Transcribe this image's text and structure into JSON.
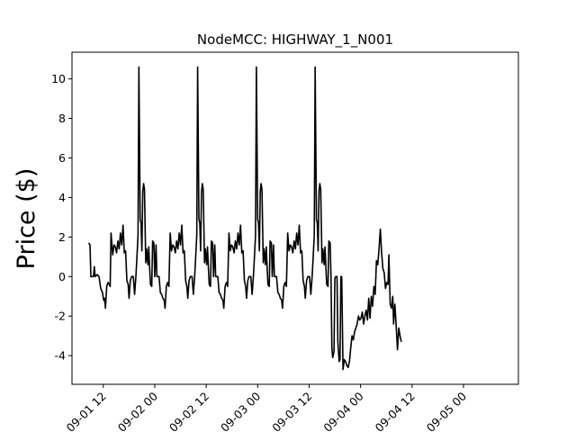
{
  "chart_data": {
    "type": "line",
    "title": "NodeMCC: HIGHWAY_1_N001",
    "xlabel": "",
    "ylabel": "Price ($)",
    "x_unit": "hours from 2020-09-01 00:00",
    "xlim": [
      4.7,
      108.8
    ],
    "ylim": [
      -5.45,
      11.35
    ],
    "yticks": [
      -4,
      -2,
      0,
      2,
      4,
      6,
      8,
      10
    ],
    "xticks": [
      {
        "x": 12,
        "label": "09-01 12"
      },
      {
        "x": 24,
        "label": "09-02 00"
      },
      {
        "x": 36,
        "label": "09-02 12"
      },
      {
        "x": 48,
        "label": "09-03 00"
      },
      {
        "x": 60,
        "label": "09-03 12"
      },
      {
        "x": 72,
        "label": "09-04 00"
      },
      {
        "x": 84,
        "label": "09-04 12"
      },
      {
        "x": 96,
        "label": "09-05 00"
      }
    ],
    "grid": false,
    "line_color": "#000000",
    "series": [
      {
        "name": "",
        "points": [
          [
            8.6,
            1.7
          ],
          [
            8.9,
            1.6
          ],
          [
            9.1,
            0.0
          ],
          [
            9.7,
            0.0
          ],
          [
            9.9,
            0.5
          ],
          [
            10.1,
            0.0
          ],
          [
            10.6,
            0.1
          ],
          [
            11.0,
            0.0
          ],
          [
            11.4,
            -0.6
          ],
          [
            11.8,
            -0.8
          ],
          [
            12.1,
            -1.2
          ],
          [
            12.3,
            -1.1
          ],
          [
            12.5,
            -1.6
          ],
          [
            12.8,
            -0.5
          ],
          [
            13.1,
            -0.3
          ],
          [
            13.4,
            -0.4
          ],
          [
            13.6,
            -0.5
          ],
          [
            13.8,
            2.2
          ],
          [
            14.2,
            1.1
          ],
          [
            14.5,
            1.6
          ],
          [
            14.8,
            1.5
          ],
          [
            15.1,
            1.2
          ],
          [
            15.4,
            1.8
          ],
          [
            15.7,
            1.4
          ],
          [
            16.0,
            2.2
          ],
          [
            16.3,
            1.6
          ],
          [
            16.6,
            2.6
          ],
          [
            16.9,
            1.2
          ],
          [
            17.2,
            1.3
          ],
          [
            17.5,
            -0.2
          ],
          [
            17.8,
            -0.4
          ],
          [
            18.0,
            -1.1
          ],
          [
            18.3,
            -0.2
          ],
          [
            18.6,
            0.0
          ],
          [
            19.0,
            0.0
          ],
          [
            19.3,
            -0.9
          ],
          [
            19.6,
            0.0
          ],
          [
            19.8,
            0.8
          ],
          [
            20.1,
            2.1
          ],
          [
            20.3,
            10.6
          ],
          [
            20.6,
            2.9
          ],
          [
            20.8,
            2.7
          ],
          [
            21.0,
            1.3
          ],
          [
            21.2,
            4.3
          ],
          [
            21.4,
            4.7
          ],
          [
            21.6,
            4.4
          ],
          [
            21.9,
            0.7
          ],
          [
            22.1,
            1.4
          ],
          [
            22.4,
            0.6
          ],
          [
            22.6,
            1.5
          ],
          [
            22.8,
            0.5
          ],
          [
            23.0,
            -0.4
          ],
          [
            23.3,
            -0.5
          ],
          [
            23.5,
            1.8
          ],
          [
            23.8,
            1.7
          ],
          [
            24.0,
            0.0
          ],
          [
            24.3,
            1.6
          ],
          [
            24.5,
            0.0
          ],
          [
            25.0,
            0.0
          ],
          [
            25.3,
            -0.8
          ],
          [
            25.6,
            -0.9
          ],
          [
            25.9,
            -1.1
          ],
          [
            26.2,
            -1.2
          ],
          [
            26.4,
            -1.6
          ],
          [
            26.7,
            -0.5
          ],
          [
            27.0,
            -0.3
          ],
          [
            27.3,
            -0.5
          ],
          [
            27.6,
            2.2
          ],
          [
            27.9,
            1.3
          ],
          [
            28.2,
            1.6
          ],
          [
            28.5,
            1.5
          ],
          [
            28.8,
            1.2
          ],
          [
            29.1,
            1.8
          ],
          [
            29.4,
            1.4
          ],
          [
            29.7,
            2.2
          ],
          [
            30.0,
            1.6
          ],
          [
            30.3,
            2.6
          ],
          [
            30.6,
            1.2
          ],
          [
            30.9,
            1.3
          ],
          [
            31.2,
            -0.2
          ],
          [
            31.5,
            -0.5
          ],
          [
            31.7,
            -1.1
          ],
          [
            32.0,
            -0.2
          ],
          [
            32.3,
            0.0
          ],
          [
            32.7,
            0.0
          ],
          [
            33.0,
            -0.9
          ],
          [
            33.3,
            0.0
          ],
          [
            33.5,
            0.8
          ],
          [
            33.8,
            2.1
          ],
          [
            34.0,
            10.6
          ],
          [
            34.3,
            2.9
          ],
          [
            34.5,
            2.7
          ],
          [
            34.7,
            1.3
          ],
          [
            34.9,
            4.3
          ],
          [
            35.1,
            4.7
          ],
          [
            35.3,
            4.4
          ],
          [
            35.6,
            0.7
          ],
          [
            35.8,
            1.4
          ],
          [
            36.1,
            0.6
          ],
          [
            36.3,
            1.5
          ],
          [
            36.5,
            0.5
          ],
          [
            36.7,
            -0.4
          ],
          [
            37.0,
            -0.5
          ],
          [
            37.2,
            1.8
          ],
          [
            37.5,
            1.7
          ],
          [
            37.7,
            0.0
          ],
          [
            38.0,
            1.6
          ],
          [
            38.2,
            0.0
          ],
          [
            38.7,
            0.0
          ],
          [
            39.0,
            -0.8
          ],
          [
            39.3,
            -0.9
          ],
          [
            39.6,
            -1.1
          ],
          [
            39.9,
            -1.2
          ],
          [
            40.1,
            -1.6
          ],
          [
            40.4,
            -0.5
          ],
          [
            40.7,
            -0.3
          ],
          [
            41.0,
            -0.5
          ],
          [
            41.3,
            2.2
          ],
          [
            41.6,
            1.3
          ],
          [
            41.9,
            1.6
          ],
          [
            42.2,
            1.5
          ],
          [
            42.5,
            1.2
          ],
          [
            42.8,
            1.8
          ],
          [
            43.1,
            1.4
          ],
          [
            43.4,
            2.2
          ],
          [
            43.7,
            1.6
          ],
          [
            44.0,
            2.6
          ],
          [
            44.3,
            1.2
          ],
          [
            44.6,
            1.3
          ],
          [
            44.9,
            -0.2
          ],
          [
            45.2,
            -0.5
          ],
          [
            45.4,
            -1.1
          ],
          [
            45.7,
            -0.2
          ],
          [
            46.0,
            0.0
          ],
          [
            46.4,
            0.0
          ],
          [
            46.7,
            -0.9
          ],
          [
            47.0,
            0.0
          ],
          [
            47.2,
            0.8
          ],
          [
            47.5,
            2.1
          ],
          [
            47.7,
            10.6
          ],
          [
            48.0,
            2.9
          ],
          [
            48.2,
            2.7
          ],
          [
            48.4,
            1.3
          ],
          [
            48.6,
            4.3
          ],
          [
            48.8,
            4.7
          ],
          [
            49.0,
            4.4
          ],
          [
            49.3,
            0.7
          ],
          [
            49.5,
            1.4
          ],
          [
            49.8,
            0.6
          ],
          [
            50.0,
            1.5
          ],
          [
            50.2,
            0.5
          ],
          [
            50.4,
            -0.4
          ],
          [
            50.7,
            -0.5
          ],
          [
            50.9,
            1.8
          ],
          [
            51.2,
            1.7
          ],
          [
            51.4,
            0.0
          ],
          [
            51.7,
            1.6
          ],
          [
            51.9,
            0.0
          ],
          [
            52.4,
            0.0
          ],
          [
            52.7,
            -0.8
          ],
          [
            53.0,
            -0.9
          ],
          [
            53.3,
            -1.1
          ],
          [
            53.6,
            -1.2
          ],
          [
            53.8,
            -1.6
          ],
          [
            54.1,
            -0.5
          ],
          [
            54.4,
            -0.3
          ],
          [
            54.7,
            -0.5
          ],
          [
            55.0,
            2.2
          ],
          [
            55.3,
            1.3
          ],
          [
            55.6,
            1.6
          ],
          [
            55.9,
            1.5
          ],
          [
            56.2,
            1.2
          ],
          [
            56.5,
            1.8
          ],
          [
            56.8,
            1.4
          ],
          [
            57.1,
            2.2
          ],
          [
            57.4,
            1.6
          ],
          [
            57.7,
            2.6
          ],
          [
            58.0,
            1.2
          ],
          [
            58.3,
            1.3
          ],
          [
            58.6,
            -0.2
          ],
          [
            58.9,
            -0.5
          ],
          [
            59.1,
            -1.1
          ],
          [
            59.4,
            -0.2
          ],
          [
            59.7,
            0.0
          ],
          [
            60.1,
            0.0
          ],
          [
            60.4,
            -0.9
          ],
          [
            60.7,
            0.0
          ],
          [
            60.9,
            0.8
          ],
          [
            61.2,
            2.1
          ],
          [
            61.4,
            10.6
          ],
          [
            61.7,
            2.9
          ],
          [
            61.9,
            2.7
          ],
          [
            62.1,
            1.3
          ],
          [
            62.3,
            4.3
          ],
          [
            62.5,
            4.7
          ],
          [
            62.7,
            4.4
          ],
          [
            63.0,
            0.7
          ],
          [
            63.2,
            1.4
          ],
          [
            63.5,
            0.6
          ],
          [
            63.7,
            1.5
          ],
          [
            63.9,
            0.5
          ],
          [
            64.1,
            -0.4
          ],
          [
            64.4,
            -0.5
          ],
          [
            64.6,
            1.8
          ],
          [
            64.9,
            1.7
          ],
          [
            65.1,
            0.0
          ],
          [
            65.3,
            -3.6
          ],
          [
            65.5,
            -4.1
          ],
          [
            65.8,
            -3.8
          ],
          [
            66.0,
            -0.1
          ],
          [
            66.2,
            0.0
          ],
          [
            66.5,
            0.0
          ],
          [
            66.7,
            -3.3
          ],
          [
            67.0,
            -4.3
          ],
          [
            67.2,
            -4.2
          ],
          [
            67.4,
            0.0
          ],
          [
            67.6,
            0.0
          ],
          [
            67.9,
            -4.7
          ],
          [
            68.2,
            -4.2
          ],
          [
            68.5,
            -4.3
          ],
          [
            68.8,
            -4.5
          ],
          [
            69.1,
            -4.6
          ],
          [
            69.4,
            -4.3
          ],
          [
            69.7,
            -3.6
          ],
          [
            70.0,
            -3.0
          ],
          [
            70.3,
            -3.2
          ],
          [
            70.6,
            -2.8
          ],
          [
            70.9,
            -2.6
          ],
          [
            71.2,
            -2.4
          ],
          [
            71.5,
            -2.0
          ],
          [
            71.8,
            -2.2
          ],
          [
            72.1,
            -2.1
          ],
          [
            72.4,
            -1.8
          ],
          [
            72.7,
            -2.4
          ],
          [
            73.0,
            -2.0
          ],
          [
            73.3,
            -1.7
          ],
          [
            73.6,
            -2.2
          ],
          [
            73.9,
            -1.1
          ],
          [
            74.2,
            -2.1
          ],
          [
            74.5,
            -1.0
          ],
          [
            74.8,
            -1.5
          ],
          [
            75.1,
            -0.5
          ],
          [
            75.4,
            -0.9
          ],
          [
            75.7,
            0.8
          ],
          [
            76.0,
            0.6
          ],
          [
            76.3,
            1.4
          ],
          [
            76.6,
            2.4
          ],
          [
            76.9,
            1.2
          ],
          [
            77.2,
            0.4
          ],
          [
            77.5,
            0.2
          ],
          [
            77.8,
            -0.6
          ],
          [
            78.1,
            -0.3
          ],
          [
            78.4,
            -0.4
          ],
          [
            78.6,
            1.1
          ],
          [
            78.9,
            -1.4
          ],
          [
            79.2,
            -1.6
          ],
          [
            79.5,
            -1.0
          ],
          [
            79.7,
            -2.4
          ],
          [
            80.0,
            -1.4
          ],
          [
            80.3,
            -2.5
          ],
          [
            80.6,
            -3.7
          ],
          [
            80.9,
            -2.6
          ],
          [
            81.2,
            -3.0
          ],
          [
            81.5,
            -3.3
          ]
        ]
      }
    ]
  }
}
